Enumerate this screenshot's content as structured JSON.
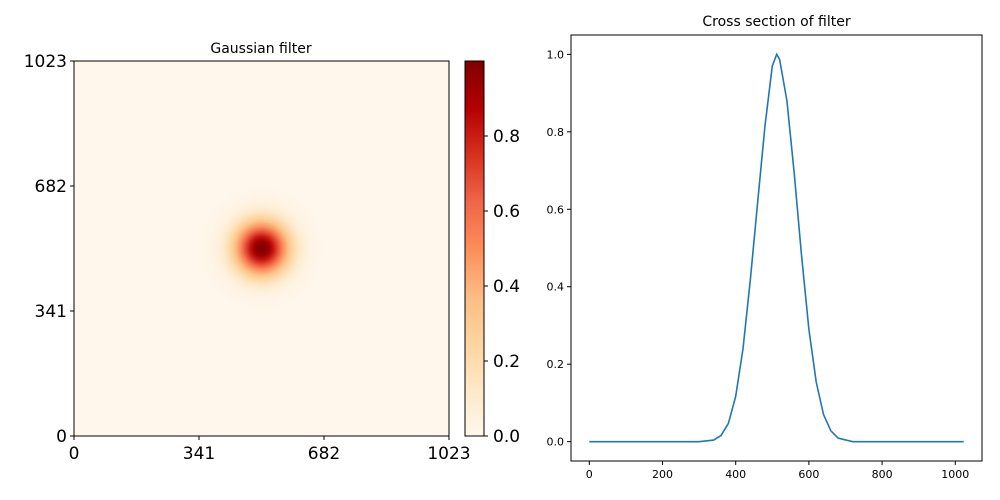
{
  "chart_data": [
    {
      "type": "heatmap",
      "title": "Gaussian filter",
      "xlabel": "",
      "ylabel": "",
      "size": 1024,
      "xlim": [
        0,
        1023
      ],
      "ylim": [
        0,
        1023
      ],
      "xticks": [
        "0",
        "341",
        "682",
        "1023"
      ],
      "yticks": [
        "0",
        "341",
        "682",
        "1023"
      ],
      "center": [
        512,
        512
      ],
      "sigma": 50,
      "colormap": "OrRd",
      "colorbar": {
        "range": [
          0,
          1
        ],
        "ticks": [
          "0.0",
          "0.2",
          "0.4",
          "0.6",
          "0.8"
        ]
      }
    },
    {
      "type": "line",
      "title": "Cross section of filter",
      "xlabel": "",
      "ylabel": "",
      "xlim": [
        -50,
        1073
      ],
      "ylim": [
        -0.05,
        1.05
      ],
      "xticks": [
        "0",
        "200",
        "400",
        "600",
        "800",
        "1000"
      ],
      "yticks": [
        "0.0",
        "0.2",
        "0.4",
        "0.6",
        "0.8",
        "1.0"
      ],
      "series": [
        {
          "color": "#1f77b4",
          "x": [
            0,
            300,
            340,
            360,
            380,
            400,
            420,
            440,
            460,
            480,
            500,
            512,
            520,
            540,
            560,
            580,
            600,
            620,
            640,
            660,
            680,
            720,
            1023
          ],
          "y": [
            0.0,
            0.0,
            0.004,
            0.016,
            0.047,
            0.117,
            0.24,
            0.418,
            0.618,
            0.815,
            0.97,
            1.0,
            0.987,
            0.88,
            0.692,
            0.48,
            0.29,
            0.154,
            0.07,
            0.028,
            0.009,
            0.0,
            0.0
          ]
        }
      ]
    }
  ]
}
